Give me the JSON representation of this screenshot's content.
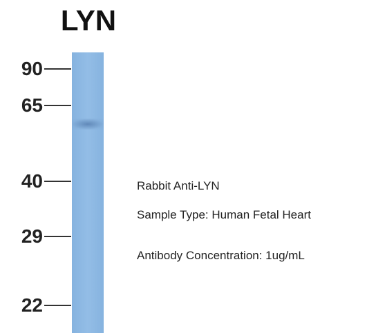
{
  "title": "LYN",
  "markers": [
    90,
    65,
    40,
    29,
    22
  ],
  "annotations": [
    "Rabbit Anti-LYN",
    "Sample Type: Human Fetal Heart",
    "Antibody Concentration: 1ug/mL"
  ]
}
